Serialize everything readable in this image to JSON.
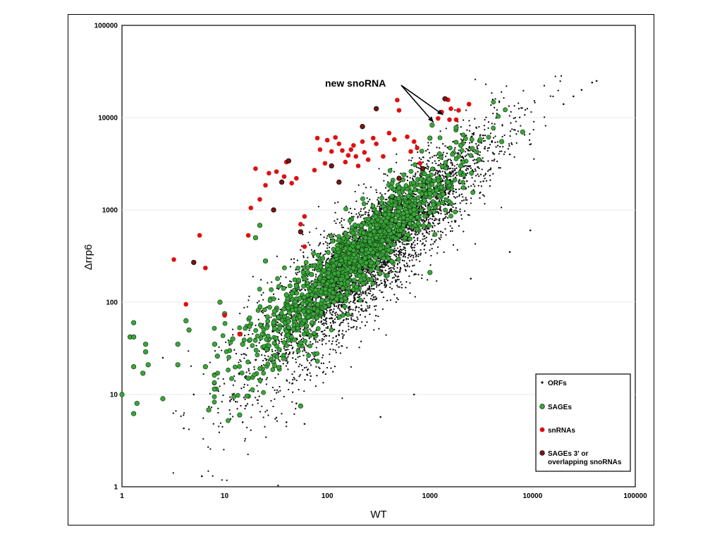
{
  "chart_data": {
    "type": "scatter",
    "xlabel": "WT",
    "ylabel": "Δrrp6",
    "xscale": "log",
    "yscale": "log",
    "xlim": [
      1,
      100000
    ],
    "ylim": [
      1,
      100000
    ],
    "x_ticks": [
      "1",
      "10",
      "100",
      "1000",
      "10000",
      "100000"
    ],
    "y_ticks": [
      "1",
      "10",
      "100",
      "1000",
      "10000",
      "100000"
    ],
    "grid": "horizontal light gridlines at decades",
    "legend_position": "bottom-right",
    "annotation": {
      "text": "new snoRNA",
      "points_to": [
        [
          1050,
          8300
        ],
        [
          1300,
          10000
        ]
      ]
    },
    "series": [
      {
        "name": "ORFs",
        "color": "#111111",
        "marker": "small-dot",
        "distribution": "approximately 5000 genes scattered along the diagonal from about 3 to 45000 (WT) with log-normal spread",
        "points": [
          [
            42000,
            25000
          ],
          [
            38000,
            24000
          ],
          [
            30000,
            20000
          ],
          [
            25000,
            17000
          ],
          [
            20000,
            14000
          ],
          [
            6000,
            4000
          ],
          [
            2500,
            180
          ],
          [
            9500,
            600
          ],
          [
            6000,
            350
          ],
          [
            330,
            5.7
          ],
          [
            700,
            10
          ],
          [
            50,
            8
          ],
          [
            40,
            5
          ],
          [
            15,
            5
          ],
          [
            6,
            1.3
          ],
          [
            60,
            4.8
          ],
          [
            4,
            4.3
          ],
          [
            5,
            10
          ],
          [
            2.5,
            25
          ]
        ]
      },
      {
        "name": "SAGEs",
        "color": "#3aa63a",
        "marker": "circle",
        "points": [
          [
            1,
            10
          ],
          [
            1.2,
            42
          ],
          [
            1.3,
            42
          ],
          [
            1.3,
            60
          ],
          [
            1.3,
            6.2
          ],
          [
            1.3,
            20
          ],
          [
            1.4,
            8
          ],
          [
            1.6,
            17
          ],
          [
            1.7,
            35
          ],
          [
            1.7,
            29
          ],
          [
            1.8,
            21
          ],
          [
            2.5,
            9
          ],
          [
            3.5,
            35
          ],
          [
            3.5,
            21
          ],
          [
            4.2,
            63
          ],
          [
            4.5,
            50
          ],
          [
            6.5,
            20
          ],
          [
            7,
            6.8
          ],
          [
            8,
            35
          ],
          [
            8.5,
            26
          ],
          [
            9,
            100
          ],
          [
            10,
            75
          ],
          [
            12,
            40
          ],
          [
            14,
            6
          ],
          [
            15,
            35
          ],
          [
            17,
            15
          ],
          [
            20,
            500
          ],
          [
            22,
            680
          ],
          [
            25,
            280
          ],
          [
            55,
            7.5
          ],
          [
            30,
            60
          ],
          [
            40,
            120
          ],
          [
            50,
            150
          ],
          [
            60,
            180
          ],
          [
            70,
            200
          ],
          [
            100,
            250
          ],
          [
            150,
            300
          ],
          [
            200,
            400
          ],
          [
            300,
            500
          ],
          [
            400,
            600
          ],
          [
            500,
            700
          ],
          [
            700,
            1000
          ],
          [
            1000,
            1500
          ],
          [
            1050,
            8300
          ],
          [
            1500,
            2000
          ],
          [
            2000,
            3000
          ],
          [
            3000,
            3500
          ],
          [
            5000,
            5500
          ],
          [
            8000,
            7000
          ],
          [
            1800,
            7800
          ],
          [
            1000,
            6000
          ],
          [
            2000,
            5000
          ],
          [
            130,
            470
          ],
          [
            700,
            900
          ],
          [
            1000,
            210
          ]
        ]
      },
      {
        "name": "snRNAs",
        "color": "#e01010",
        "marker": "circle",
        "points": [
          [
            3.2,
            290
          ],
          [
            4.2,
            95
          ],
          [
            5.7,
            530
          ],
          [
            6.5,
            235
          ],
          [
            10,
            72
          ],
          [
            14,
            45
          ],
          [
            17,
            530
          ],
          [
            18,
            1050
          ],
          [
            20,
            2800
          ],
          [
            22,
            1300
          ],
          [
            25,
            1850
          ],
          [
            27,
            2500
          ],
          [
            32,
            2600
          ],
          [
            38,
            2300
          ],
          [
            40,
            3300
          ],
          [
            45,
            1950
          ],
          [
            50,
            2200
          ],
          [
            55,
            700
          ],
          [
            60,
            850
          ],
          [
            60,
            400
          ],
          [
            75,
            2700
          ],
          [
            80,
            6000
          ],
          [
            85,
            4500
          ],
          [
            95,
            3200
          ],
          [
            100,
            5700
          ],
          [
            110,
            4300
          ],
          [
            120,
            6100
          ],
          [
            130,
            5200
          ],
          [
            140,
            4400
          ],
          [
            150,
            3300
          ],
          [
            160,
            3900
          ],
          [
            170,
            4500
          ],
          [
            180,
            5000
          ],
          [
            190,
            3800
          ],
          [
            200,
            3000
          ],
          [
            220,
            5500
          ],
          [
            230,
            4200
          ],
          [
            250,
            3500
          ],
          [
            280,
            6000
          ],
          [
            300,
            5200
          ],
          [
            350,
            3800
          ],
          [
            400,
            6800
          ],
          [
            450,
            5800
          ],
          [
            480,
            15500
          ],
          [
            500,
            12000
          ],
          [
            600,
            6200
          ],
          [
            650,
            4300
          ],
          [
            700,
            5500
          ],
          [
            750,
            4700
          ],
          [
            800,
            3200
          ],
          [
            1200,
            9800
          ],
          [
            1300,
            11500
          ],
          [
            1500,
            15600
          ],
          [
            1550,
            9500
          ],
          [
            1600,
            12500
          ],
          [
            1800,
            9500
          ],
          [
            1900,
            12000
          ],
          [
            2400,
            14000
          ]
        ]
      },
      {
        "name": "SAGEs 3' or overlapping snoRNAs",
        "color": "#7a1414",
        "marker": "circle",
        "points": [
          [
            5,
            270
          ],
          [
            30,
            1000
          ],
          [
            36,
            2000
          ],
          [
            42,
            3400
          ],
          [
            55,
            580
          ],
          [
            110,
            3000
          ],
          [
            130,
            2000
          ],
          [
            220,
            8000
          ],
          [
            300,
            12500
          ],
          [
            500,
            2200
          ],
          [
            850,
            2800
          ],
          [
            1400,
            16000
          ]
        ]
      }
    ]
  },
  "legend": {
    "items": [
      {
        "label": "ORFs",
        "color": "#111111",
        "marker": "small-dot"
      },
      {
        "label": "SAGEs",
        "color": "#3aa63a",
        "marker": "circle"
      },
      {
        "label": "snRNAs",
        "color": "#e01010",
        "marker": "circle"
      },
      {
        "label": "SAGEs 3' or",
        "label2": "overlapping snoRNAs",
        "color": "#7a1414",
        "marker": "circle"
      }
    ]
  }
}
